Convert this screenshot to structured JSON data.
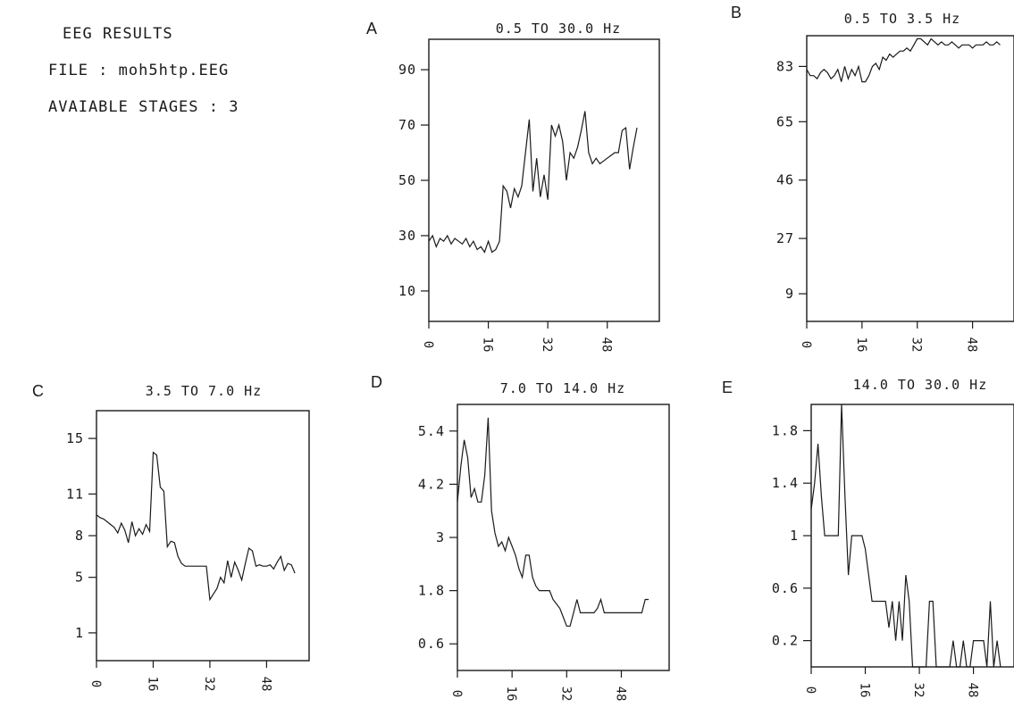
{
  "header": {
    "title": "EEG RESULTS",
    "file": "FILE : moh5htp.EEG",
    "stages": "AVAIABLE STAGES : 3"
  },
  "colors": {
    "ink": "#1a1a1a",
    "background": "#ffffff"
  },
  "chart_data": [
    {
      "type": "line",
      "panel_label": "A",
      "title": "0.5 TO 30.0 Hz",
      "xlabel": "",
      "ylabel": "",
      "x_ticks": [
        0,
        16,
        32,
        48
      ],
      "y_ticks": [
        10,
        30,
        50,
        70,
        90
      ],
      "xlim": [
        0,
        62
      ],
      "ylim": [
        -1,
        101
      ],
      "series": [
        {
          "x": [
            0,
            1,
            2,
            3,
            4,
            5,
            6,
            7,
            8,
            9,
            10,
            11,
            12,
            13,
            14,
            15,
            16,
            17,
            18,
            19,
            20,
            21,
            22,
            23,
            24,
            25,
            26,
            27,
            28,
            29,
            30,
            31,
            32,
            33,
            34,
            35,
            36,
            37,
            38,
            39,
            40,
            41,
            42,
            43,
            44,
            45,
            46,
            47,
            48,
            49,
            50,
            51,
            52,
            53,
            54,
            55,
            56
          ],
          "values": [
            28,
            30,
            26,
            29,
            28,
            30,
            27,
            29,
            28,
            27,
            29,
            26,
            28,
            25,
            26,
            24,
            28,
            24,
            25,
            28,
            48,
            46,
            40,
            47,
            44,
            48,
            60,
            72,
            46,
            58,
            44,
            52,
            43,
            70,
            66,
            70,
            64,
            50,
            60,
            58,
            62,
            68,
            75,
            60,
            56,
            58,
            56,
            57,
            58,
            59,
            60,
            60,
            68,
            69,
            54,
            62,
            69
          ]
        }
      ]
    },
    {
      "type": "line",
      "panel_label": "B",
      "title": "0.5 TO 3.5 Hz",
      "xlabel": "",
      "ylabel": "",
      "x_ticks": [
        0,
        16,
        32,
        48
      ],
      "y_ticks": [
        9,
        27,
        46,
        65,
        83
      ],
      "xlim": [
        0,
        60
      ],
      "ylim": [
        0,
        93
      ],
      "series": [
        {
          "x": [
            0,
            1,
            2,
            3,
            4,
            5,
            6,
            7,
            8,
            9,
            10,
            11,
            12,
            13,
            14,
            15,
            16,
            17,
            18,
            19,
            20,
            21,
            22,
            23,
            24,
            25,
            26,
            27,
            28,
            29,
            30,
            31,
            32,
            33,
            34,
            35,
            36,
            37,
            38,
            39,
            40,
            41,
            42,
            43,
            44,
            45,
            46,
            47,
            48,
            49,
            50,
            51,
            52,
            53,
            54,
            55,
            56
          ],
          "values": [
            82,
            80,
            80,
            79,
            81,
            82,
            81,
            79,
            80,
            82,
            78,
            83,
            79,
            82,
            80,
            83,
            78,
            78,
            80,
            83,
            84,
            82,
            86,
            85,
            87,
            86,
            87,
            88,
            88,
            89,
            88,
            90,
            92,
            92,
            91,
            90,
            92,
            91,
            90,
            91,
            90,
            90,
            91,
            90,
            89,
            90,
            90,
            90,
            89,
            90,
            90,
            90,
            91,
            90,
            90,
            91,
            90
          ]
        }
      ]
    },
    {
      "type": "line",
      "panel_label": "C",
      "title": "3.5 TO 7.0 Hz",
      "xlabel": "",
      "ylabel": "",
      "x_ticks": [
        0,
        16,
        32,
        48
      ],
      "y_ticks": [
        1,
        5,
        8,
        11,
        15
      ],
      "xlim": [
        0,
        60
      ],
      "ylim": [
        -1,
        17
      ],
      "series": [
        {
          "x": [
            0,
            1,
            2,
            3,
            4,
            5,
            6,
            7,
            8,
            9,
            10,
            11,
            12,
            13,
            14,
            15,
            16,
            17,
            18,
            19,
            20,
            21,
            22,
            23,
            24,
            25,
            26,
            27,
            28,
            29,
            30,
            31,
            32,
            33,
            34,
            35,
            36,
            37,
            38,
            39,
            40,
            41,
            42,
            43,
            44,
            45,
            46,
            47,
            48,
            49,
            50,
            51,
            52,
            53,
            54,
            55,
            56
          ],
          "values": [
            9.5,
            9.3,
            9.2,
            9.0,
            8.8,
            8.6,
            8.2,
            8.9,
            8.4,
            7.5,
            9.0,
            8.0,
            8.5,
            8.1,
            8.8,
            8.3,
            14.0,
            13.8,
            11.5,
            11.2,
            7.2,
            7.6,
            7.5,
            6.5,
            6.0,
            5.8,
            5.8,
            5.8,
            5.8,
            5.8,
            5.8,
            5.8,
            3.4,
            3.8,
            4.2,
            5.0,
            4.6,
            6.2,
            5.0,
            6.1,
            5.5,
            4.8,
            6.0,
            7.1,
            6.9,
            5.8,
            5.9,
            5.8,
            5.8,
            5.9,
            5.6,
            6.1,
            6.5,
            5.5,
            6.0,
            5.9,
            5.3
          ]
        }
      ]
    },
    {
      "type": "line",
      "panel_label": "D",
      "title": "7.0 TO 14.0 Hz",
      "xlabel": "",
      "ylabel": "",
      "x_ticks": [
        0,
        16,
        32,
        48
      ],
      "y_ticks": [
        0.6,
        1.8,
        3.0,
        4.2,
        5.4
      ],
      "xlim": [
        0,
        62
      ],
      "ylim": [
        0.0,
        6.0
      ],
      "series": [
        {
          "x": [
            0,
            1,
            2,
            3,
            4,
            5,
            6,
            7,
            8,
            9,
            10,
            11,
            12,
            13,
            14,
            15,
            16,
            17,
            18,
            19,
            20,
            21,
            22,
            23,
            24,
            25,
            26,
            27,
            28,
            29,
            30,
            31,
            32,
            33,
            34,
            35,
            36,
            37,
            38,
            39,
            40,
            41,
            42,
            43,
            44,
            45,
            46,
            47,
            48,
            49,
            50,
            51,
            52,
            53,
            54,
            55,
            56
          ],
          "values": [
            3.8,
            4.6,
            5.2,
            4.8,
            3.9,
            4.1,
            3.8,
            3.8,
            4.4,
            5.7,
            3.6,
            3.1,
            2.8,
            2.9,
            2.7,
            3.0,
            2.8,
            2.6,
            2.3,
            2.1,
            2.6,
            2.6,
            2.1,
            1.9,
            1.8,
            1.8,
            1.8,
            1.8,
            1.6,
            1.5,
            1.4,
            1.2,
            1.0,
            1.0,
            1.3,
            1.6,
            1.3,
            1.3,
            1.3,
            1.3,
            1.3,
            1.4,
            1.6,
            1.3,
            1.3,
            1.3,
            1.3,
            1.3,
            1.3,
            1.3,
            1.3,
            1.3,
            1.3,
            1.3,
            1.3,
            1.6,
            1.6
          ]
        }
      ]
    },
    {
      "type": "line",
      "panel_label": "E",
      "title": "14.0 TO 30.0 Hz",
      "xlabel": "",
      "ylabel": "",
      "x_ticks": [
        0,
        16,
        32,
        48
      ],
      "y_ticks": [
        0.2,
        0.6,
        1.0,
        1.4,
        1.8
      ],
      "xlim": [
        0,
        60
      ],
      "ylim": [
        0.0,
        2.0
      ],
      "series": [
        {
          "x": [
            0,
            1,
            2,
            3,
            4,
            5,
            6,
            7,
            8,
            9,
            10,
            11,
            12,
            13,
            14,
            15,
            16,
            17,
            18,
            19,
            20,
            21,
            22,
            23,
            24,
            25,
            26,
            27,
            28,
            29,
            30,
            31,
            32,
            33,
            34,
            35,
            36,
            37,
            38,
            39,
            40,
            41,
            42,
            43,
            44,
            45,
            46,
            47,
            48,
            49,
            50,
            51,
            52,
            53,
            54,
            55,
            56
          ],
          "values": [
            1.2,
            1.4,
            1.7,
            1.3,
            1.0,
            1.0,
            1.0,
            1.0,
            1.0,
            2.0,
            1.3,
            0.7,
            1.0,
            1.0,
            1.0,
            1.0,
            0.9,
            0.7,
            0.5,
            0.5,
            0.5,
            0.5,
            0.5,
            0.3,
            0.5,
            0.2,
            0.5,
            0.2,
            0.7,
            0.5,
            0.0,
            0.0,
            0.0,
            0.0,
            0.0,
            0.5,
            0.5,
            0.0,
            0.0,
            0.0,
            0.0,
            0.0,
            0.2,
            0.0,
            0.0,
            0.2,
            0.0,
            0.0,
            0.2,
            0.2,
            0.2,
            0.2,
            0.0,
            0.5,
            0.0,
            0.2,
            0.0
          ]
        }
      ]
    }
  ]
}
